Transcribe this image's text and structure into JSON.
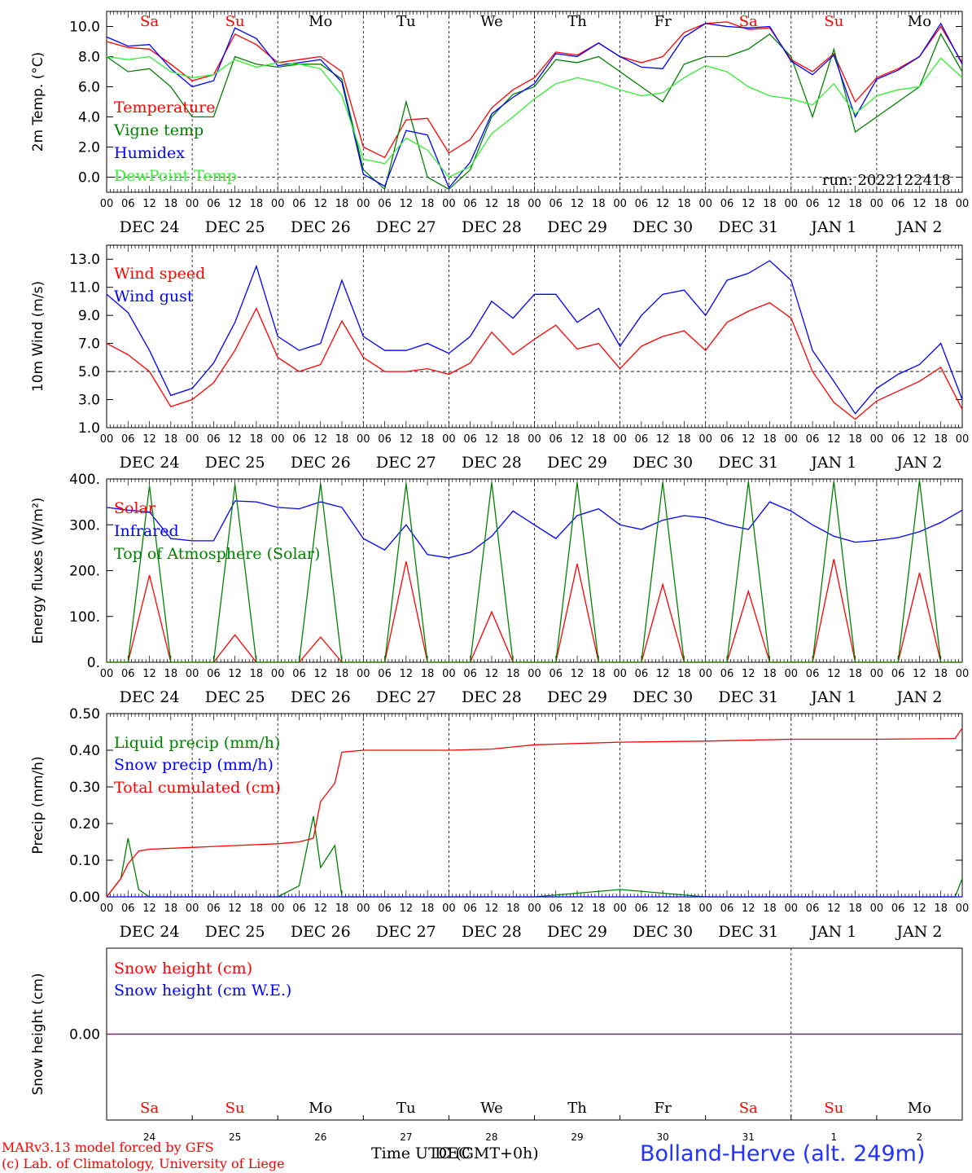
{
  "footer": {
    "credit_line1": "MARv3.13 model forced by GFS",
    "credit_line2": "(c) Lab. of Climatology, University of Liege",
    "xlabel": "Time UTC (GMT+0h)",
    "xlabel_overlay": "DEC",
    "station": "Bolland-Herve (alt. 249m)",
    "colors": {
      "credit": "#ff0000",
      "station": "#2233ff",
      "text": "#000000"
    }
  },
  "days": {
    "weekday": [
      "Sa",
      "Su",
      "Mo",
      "Tu",
      "We",
      "Th",
      "Fr",
      "Sa",
      "Su",
      "Mo"
    ],
    "weekday_color": [
      "#ff0000",
      "#ff0000",
      "#000000",
      "#000000",
      "#000000",
      "#000000",
      "#000000",
      "#ff0000",
      "#ff0000",
      "#000000"
    ],
    "date_labels": [
      "DEC 24",
      "DEC 25",
      "DEC 26",
      "DEC 27",
      "DEC 28",
      "DEC 29",
      "DEC 30",
      "DEC 31",
      "JAN  1",
      "JAN  2"
    ],
    "hour_labels": [
      "00",
      "06",
      "12",
      "18"
    ],
    "hour_end": "00",
    "day_numbers": [
      "24",
      "25",
      "26",
      "27",
      "28",
      "29",
      "30",
      "31",
      "1",
      "2"
    ]
  },
  "chart_data": [
    {
      "type": "line",
      "ylabel": "2m Temp. (°C)",
      "ylim": [
        -1.0,
        11.0
      ],
      "yticks": [
        0.0,
        2.0,
        4.0,
        6.0,
        8.0,
        10.0
      ],
      "ytick_labels": [
        "0.0",
        "2.0",
        "4.0",
        "6.0",
        "8.0",
        "10.0"
      ],
      "hline": 0.0,
      "annotation": "run: 2022122418",
      "x_hours": [
        0,
        6,
        12,
        18,
        24,
        30,
        36,
        42,
        48,
        54,
        60,
        66,
        72,
        78,
        84,
        90,
        96,
        102,
        108,
        114,
        120,
        126,
        132,
        138,
        144,
        150,
        156,
        162,
        168,
        174,
        180,
        186,
        192,
        198,
        204,
        210,
        216,
        222,
        228,
        234,
        240
      ],
      "series": [
        {
          "name": "Temperature",
          "color": "#ff0000",
          "values": [
            9.0,
            8.6,
            8.5,
            7.5,
            6.4,
            6.8,
            9.5,
            8.8,
            7.6,
            7.8,
            8.0,
            7.0,
            2.0,
            1.3,
            3.8,
            3.9,
            1.6,
            2.5,
            4.6,
            5.8,
            6.6,
            8.3,
            8.1,
            8.9,
            8.0,
            7.6,
            8.0,
            9.6,
            10.2,
            10.3,
            9.8,
            9.9,
            7.8,
            7.0,
            8.2,
            5.0,
            6.6,
            7.2,
            8.0,
            10.0,
            7.6
          ]
        },
        {
          "name": "Vigne temp",
          "color": "#008000",
          "values": [
            8.0,
            7.0,
            7.2,
            6.0,
            4.0,
            4.0,
            8.0,
            7.5,
            7.3,
            7.5,
            7.5,
            6.5,
            0.5,
            -0.8,
            5.0,
            0.0,
            -0.8,
            0.5,
            4.0,
            5.5,
            6.0,
            7.8,
            7.6,
            8.0,
            7.0,
            6.0,
            5.0,
            7.5,
            8.0,
            8.0,
            8.5,
            9.5,
            8.0,
            4.0,
            8.5,
            3.0,
            4.0,
            5.0,
            6.0,
            9.5,
            7.0
          ]
        },
        {
          "name": "Humidex",
          "color": "#0000ff",
          "values": [
            9.3,
            8.7,
            8.8,
            7.2,
            6.0,
            6.4,
            9.9,
            9.2,
            7.4,
            7.6,
            7.8,
            6.3,
            0.2,
            -0.6,
            3.1,
            2.8,
            -0.7,
            1.0,
            4.2,
            5.3,
            6.2,
            8.2,
            8.0,
            8.9,
            8.0,
            7.3,
            7.2,
            9.3,
            10.2,
            10.0,
            9.9,
            10.0,
            7.7,
            6.8,
            8.1,
            4.0,
            6.5,
            7.1,
            8.0,
            10.2,
            7.5
          ]
        },
        {
          "name": "DewPoint Temp",
          "color": "#33ee33",
          "values": [
            8.0,
            7.8,
            8.0,
            7.0,
            6.6,
            6.8,
            7.8,
            7.3,
            7.6,
            7.5,
            7.2,
            5.4,
            1.2,
            0.9,
            2.6,
            1.8,
            0.0,
            0.7,
            2.9,
            4.0,
            5.2,
            6.2,
            6.6,
            6.3,
            5.8,
            5.4,
            5.6,
            6.6,
            7.4,
            7.0,
            6.0,
            5.4,
            5.2,
            4.8,
            6.2,
            4.2,
            5.4,
            5.8,
            6.0,
            7.9,
            6.6
          ]
        }
      ]
    },
    {
      "type": "line",
      "ylabel": "10m Wind (m/s)",
      "ylim": [
        1.0,
        14.0
      ],
      "yticks": [
        1.0,
        3.0,
        5.0,
        7.0,
        9.0,
        11.0,
        13.0
      ],
      "ytick_labels": [
        "1.0",
        "3.0",
        "5.0",
        "7.0",
        "9.0",
        "11.0",
        "13.0"
      ],
      "hline": 5.0,
      "x_hours": [
        0,
        6,
        12,
        18,
        24,
        30,
        36,
        42,
        48,
        54,
        60,
        66,
        72,
        78,
        84,
        90,
        96,
        102,
        108,
        114,
        120,
        126,
        132,
        138,
        144,
        150,
        156,
        162,
        168,
        174,
        180,
        186,
        192,
        198,
        204,
        210,
        216,
        222,
        228,
        234,
        240
      ],
      "series": [
        {
          "name": "Wind speed",
          "color": "#ff0000",
          "values": [
            7.0,
            6.2,
            5.0,
            2.5,
            3.0,
            4.2,
            6.5,
            9.5,
            6.0,
            5.0,
            5.5,
            8.6,
            6.0,
            5.0,
            5.0,
            5.2,
            4.8,
            5.6,
            7.8,
            6.2,
            7.3,
            8.3,
            6.6,
            7.0,
            5.2,
            6.8,
            7.5,
            7.9,
            6.5,
            8.5,
            9.3,
            9.9,
            8.8,
            5.0,
            2.8,
            1.6,
            2.9,
            3.6,
            4.3,
            5.3,
            2.3
          ]
        },
        {
          "name": "Wind gust",
          "color": "#0000ff",
          "values": [
            10.5,
            9.2,
            6.5,
            3.3,
            3.8,
            5.6,
            8.5,
            12.5,
            7.5,
            6.5,
            7.0,
            11.5,
            7.5,
            6.5,
            6.5,
            7.0,
            6.3,
            7.5,
            10.0,
            8.8,
            10.5,
            10.5,
            8.5,
            9.5,
            6.8,
            9.0,
            10.5,
            10.8,
            9.0,
            11.5,
            12.0,
            12.9,
            11.5,
            6.5,
            4.3,
            2.0,
            3.8,
            4.8,
            5.5,
            7.0,
            3.0
          ]
        }
      ]
    },
    {
      "type": "line",
      "ylabel": "Energy fluxes (W/m²)",
      "ylim": [
        0,
        400
      ],
      "yticks": [
        0,
        100,
        200,
        300,
        400
      ],
      "ytick_labels": [
        "0.",
        "100.",
        "200.",
        "300.",
        "400."
      ],
      "x_hours": [
        0,
        6,
        12,
        18,
        24,
        30,
        36,
        42,
        48,
        54,
        60,
        66,
        72,
        78,
        84,
        90,
        96,
        102,
        108,
        114,
        120,
        126,
        132,
        138,
        144,
        150,
        156,
        162,
        168,
        174,
        180,
        186,
        192,
        198,
        204,
        210,
        216,
        222,
        228,
        234,
        240
      ],
      "series": [
        {
          "name": "Solar",
          "color": "#ff0000",
          "values": [
            0,
            0,
            190,
            0,
            0,
            0,
            60,
            0,
            0,
            0,
            55,
            0,
            0,
            0,
            220,
            0,
            0,
            0,
            110,
            0,
            0,
            0,
            215,
            0,
            0,
            0,
            170,
            0,
            0,
            0,
            155,
            0,
            0,
            0,
            225,
            0,
            0,
            0,
            195,
            0,
            0
          ]
        },
        {
          "name": "Infrared",
          "color": "#0000ff",
          "values": [
            338,
            332,
            328,
            270,
            265,
            265,
            352,
            350,
            338,
            335,
            350,
            338,
            270,
            245,
            300,
            235,
            228,
            240,
            275,
            330,
            300,
            270,
            320,
            335,
            300,
            290,
            310,
            320,
            315,
            300,
            290,
            350,
            330,
            300,
            275,
            262,
            266,
            272,
            285,
            305,
            332
          ]
        },
        {
          "name": "Top of Atmosphere (Solar)",
          "color": "#008000",
          "values": [
            0,
            0,
            385,
            0,
            0,
            0,
            388,
            0,
            0,
            0,
            390,
            0,
            0,
            0,
            390,
            0,
            0,
            0,
            392,
            0,
            0,
            0,
            392,
            0,
            0,
            0,
            393,
            0,
            0,
            0,
            394,
            0,
            0,
            0,
            395,
            0,
            0,
            0,
            397,
            0,
            0
          ]
        }
      ]
    },
    {
      "type": "line",
      "ylabel": "Precip (mm/h)",
      "ylim": [
        0.0,
        0.5
      ],
      "yticks": [
        0.0,
        0.1,
        0.2,
        0.3,
        0.4,
        0.5
      ],
      "ytick_labels": [
        "0.00",
        "0.10",
        "0.20",
        "0.30",
        "0.40",
        "0.50"
      ],
      "x_hours": [
        0,
        4,
        6,
        9,
        12,
        24,
        36,
        48,
        54,
        58,
        60,
        64,
        66,
        72,
        96,
        108,
        120,
        144,
        168,
        192,
        216,
        238,
        240
      ],
      "series": [
        {
          "name": "Liquid precip (mm/h)",
          "color": "#008000",
          "values": [
            0.0,
            0.05,
            0.16,
            0.02,
            0.0,
            0.0,
            0.0,
            0.0,
            0.03,
            0.22,
            0.08,
            0.14,
            0.0,
            0.0,
            0.0,
            0.0,
            0.0,
            0.02,
            0.0,
            0.0,
            0.0,
            0.0,
            0.05
          ]
        },
        {
          "name": "Snow precip (mm/h)",
          "color": "#0000ff",
          "values": [
            0,
            0,
            0,
            0,
            0,
            0,
            0,
            0,
            0,
            0,
            0,
            0,
            0,
            0,
            0,
            0,
            0,
            0,
            0,
            0,
            0,
            0,
            0
          ]
        },
        {
          "name": "Total cumulated (cm)",
          "color": "#ff0000",
          "values": [
            0.0,
            0.05,
            0.09,
            0.125,
            0.13,
            0.135,
            0.14,
            0.145,
            0.15,
            0.16,
            0.26,
            0.31,
            0.395,
            0.4,
            0.4,
            0.403,
            0.415,
            0.422,
            0.425,
            0.43,
            0.43,
            0.432,
            0.46
          ]
        }
      ]
    },
    {
      "type": "line",
      "ylabel": "Snow height (cm)",
      "ylim": [
        -1.0,
        1.0
      ],
      "yticks": [
        0.0
      ],
      "ytick_labels": [
        "0.00"
      ],
      "x_hours": [
        0,
        240
      ],
      "series": [
        {
          "name": "Snow height (cm)",
          "color": "#ff0000",
          "values": [
            0.0,
            0.0
          ]
        },
        {
          "name": "Snow height (cm W.E.)",
          "color": "#0000ff",
          "values": [
            0.0,
            0.0
          ]
        }
      ],
      "line_color": "#8800aa"
    }
  ]
}
